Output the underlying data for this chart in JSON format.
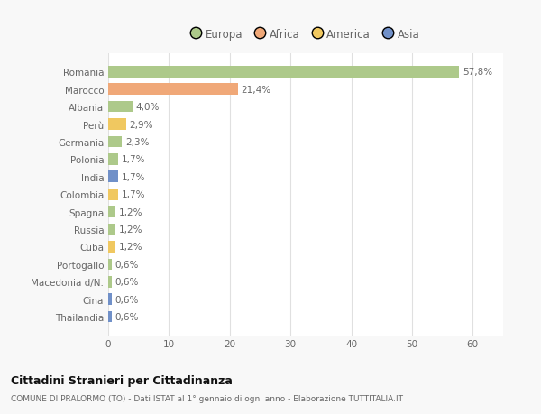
{
  "categories": [
    "Romania",
    "Marocco",
    "Albania",
    "Perù",
    "Germania",
    "Polonia",
    "India",
    "Colombia",
    "Spagna",
    "Russia",
    "Cuba",
    "Portogallo",
    "Macedonia d/N.",
    "Cina",
    "Thailandia"
  ],
  "values": [
    57.8,
    21.4,
    4.0,
    2.9,
    2.3,
    1.7,
    1.7,
    1.7,
    1.2,
    1.2,
    1.2,
    0.6,
    0.6,
    0.6,
    0.6
  ],
  "labels": [
    "57,8%",
    "21,4%",
    "4,0%",
    "2,9%",
    "2,3%",
    "1,7%",
    "1,7%",
    "1,7%",
    "1,2%",
    "1,2%",
    "1,2%",
    "0,6%",
    "0,6%",
    "0,6%",
    "0,6%"
  ],
  "colors": [
    "#adc98a",
    "#f0a878",
    "#adc98a",
    "#f0c860",
    "#adc98a",
    "#adc98a",
    "#7090c8",
    "#f0c860",
    "#adc98a",
    "#adc98a",
    "#f0c860",
    "#adc98a",
    "#adc98a",
    "#7090c8",
    "#7090c8"
  ],
  "legend_labels": [
    "Europa",
    "Africa",
    "America",
    "Asia"
  ],
  "legend_colors": [
    "#adc98a",
    "#f0a878",
    "#f0c860",
    "#7090c8"
  ],
  "title": "Cittadini Stranieri per Cittadinanza",
  "subtitle": "COMUNE DI PRALORMO (TO) - Dati ISTAT al 1° gennaio di ogni anno - Elaborazione TUTTITALIA.IT",
  "xlim": [
    0,
    65
  ],
  "xticks": [
    0,
    10,
    20,
    30,
    40,
    50,
    60
  ],
  "bg_color": "#f8f8f8",
  "plot_bg_color": "#ffffff",
  "grid_color": "#e0e0e0",
  "text_color": "#666666",
  "title_color": "#111111",
  "subtitle_color": "#666666"
}
